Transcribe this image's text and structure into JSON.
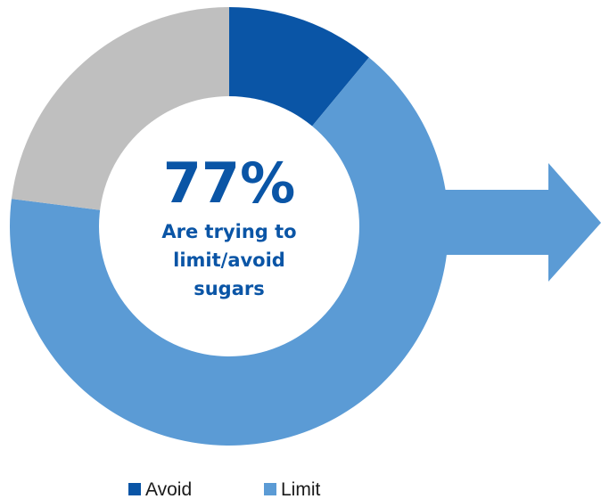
{
  "chart_data": {
    "type": "pie",
    "style": "donut",
    "slices": [
      {
        "label": "Avoid",
        "value": 11,
        "color": "#0a55a6",
        "in_legend": true
      },
      {
        "label": "Limit",
        "value": 66,
        "color": "#5b9bd5",
        "in_legend": true
      },
      {
        "label": "",
        "value": 23,
        "color": "#bfbfbf",
        "in_legend": false
      }
    ],
    "center_label": {
      "value": "77%",
      "lines": [
        "Are trying to",
        "limit/avoid",
        "sugars"
      ]
    },
    "legend": {
      "position": "bottom",
      "entries": [
        "Avoid",
        "Limit"
      ]
    },
    "arrow": {
      "direction": "right",
      "color": "#5b9bd5"
    }
  },
  "colors": {
    "center_text": "#0a55a6"
  }
}
